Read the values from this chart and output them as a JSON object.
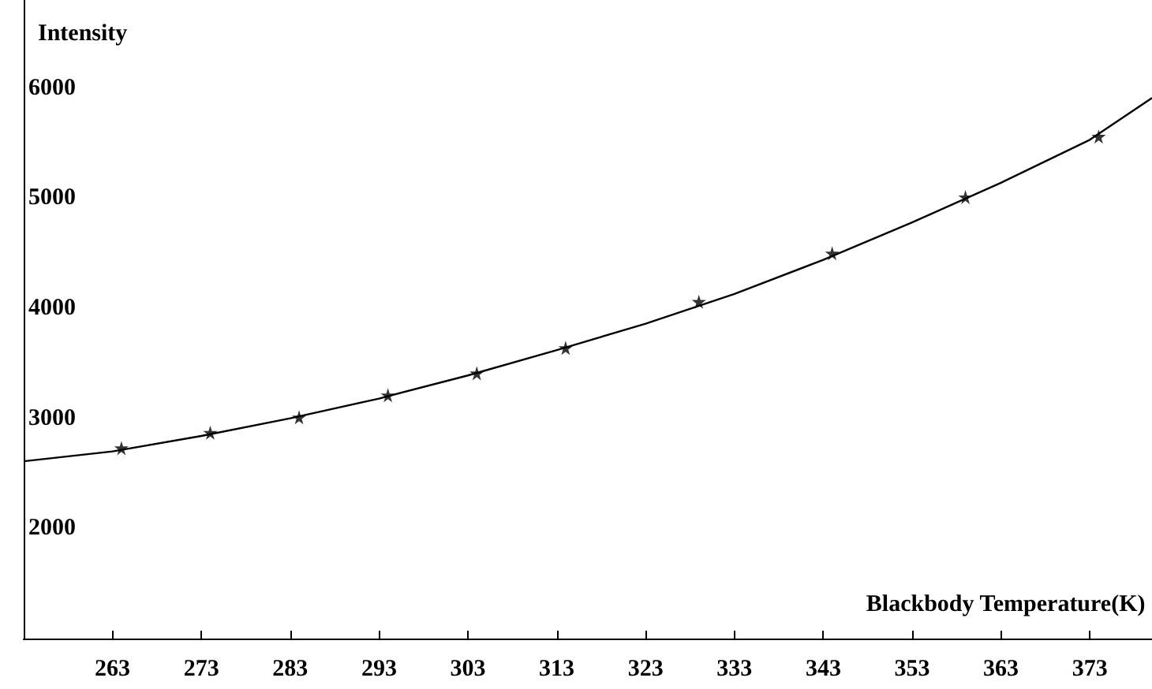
{
  "chart_data": {
    "type": "scatter",
    "xlabel": "Blackbody Temperature(K)",
    "ylabel": "Intensity",
    "xlim": [
      253,
      380
    ],
    "ylim": [
      1000,
      6800
    ],
    "xticks": [
      263,
      273,
      283,
      293,
      303,
      313,
      323,
      333,
      343,
      353,
      363,
      373
    ],
    "yticks": [
      2000,
      3000,
      4000,
      5000,
      6000
    ],
    "series": [
      {
        "type": "line",
        "color": "#000000",
        "marker": "none",
        "x": [
          253,
          263,
          273,
          283,
          293,
          303,
          313,
          323,
          333,
          343,
          353,
          363,
          373,
          380
        ],
        "values": [
          2610,
          2700,
          2840,
          3000,
          3180,
          3390,
          3620,
          3860,
          4130,
          4440,
          4780,
          5140,
          5530,
          5910
        ]
      },
      {
        "color": "#000000",
        "marker": "star",
        "x": [
          264,
          274,
          284,
          294,
          304,
          314,
          329,
          344,
          359,
          374
        ],
        "values": [
          2730,
          2870,
          3010,
          3210,
          3410,
          3640,
          4060,
          4500,
          5010,
          5560
        ]
      }
    ]
  }
}
